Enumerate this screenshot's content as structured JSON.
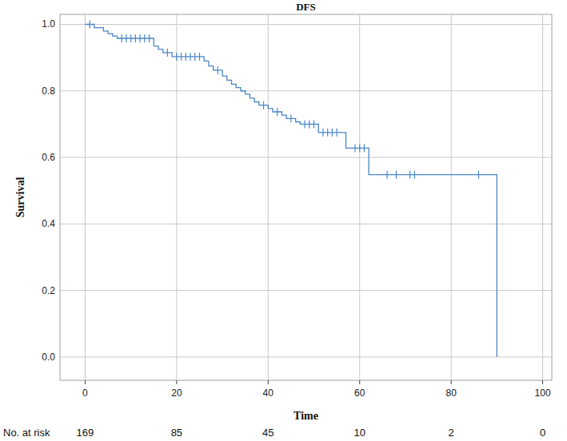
{
  "chart_data": {
    "type": "line",
    "title": "DFS",
    "x_label": "Time",
    "y_label": "Survival",
    "xlim": [
      -5.5,
      102
    ],
    "ylim": [
      -0.07,
      1.03
    ],
    "xticks": [
      0,
      20,
      40,
      60,
      80,
      100
    ],
    "yticks": [
      {
        "value": 0,
        "label": "0.0"
      },
      0.2,
      0.4,
      0.6,
      0.8,
      {
        "value": 1,
        "label": "1.0"
      }
    ],
    "grid": true,
    "series": [
      {
        "type": "line",
        "line_style": "step",
        "color": "#4a86c8",
        "x": [
          0,
          2,
          4,
          5,
          6,
          7,
          15,
          16,
          17,
          19,
          26,
          27,
          28,
          30,
          31,
          32,
          33,
          34,
          35,
          36,
          37,
          38,
          40,
          41,
          43,
          44,
          46,
          47,
          51,
          57,
          62,
          90
        ],
        "values": [
          1.0,
          0.99,
          0.98,
          0.972,
          0.965,
          0.958,
          0.935,
          0.925,
          0.915,
          0.903,
          0.89,
          0.875,
          0.862,
          0.845,
          0.832,
          0.82,
          0.81,
          0.8,
          0.79,
          0.778,
          0.767,
          0.757,
          0.747,
          0.737,
          0.727,
          0.717,
          0.707,
          0.7,
          0.675,
          0.628,
          0.548,
          0.0
        ]
      },
      {
        "type": "scatter",
        "marker": "tick",
        "color": "#4a86c8",
        "x": [
          1,
          8,
          9,
          10,
          11,
          12,
          13,
          14,
          18,
          20,
          21,
          22,
          23,
          24,
          25,
          29,
          39,
          42,
          45,
          48,
          49,
          50,
          52,
          53,
          54,
          55,
          59,
          60,
          61,
          66,
          68,
          71,
          72,
          86
        ],
        "values": [
          1.0,
          0.958,
          0.958,
          0.958,
          0.958,
          0.958,
          0.958,
          0.958,
          0.915,
          0.903,
          0.903,
          0.903,
          0.903,
          0.903,
          0.903,
          0.862,
          0.757,
          0.737,
          0.717,
          0.7,
          0.7,
          0.7,
          0.675,
          0.675,
          0.675,
          0.675,
          0.628,
          0.628,
          0.628,
          0.548,
          0.548,
          0.548,
          0.548,
          0.548
        ]
      }
    ],
    "risk_table": {
      "label": "No. at risk",
      "x": [
        0,
        20,
        40,
        60,
        80,
        100
      ],
      "values": [
        169,
        85,
        45,
        10,
        2,
        0
      ]
    }
  }
}
